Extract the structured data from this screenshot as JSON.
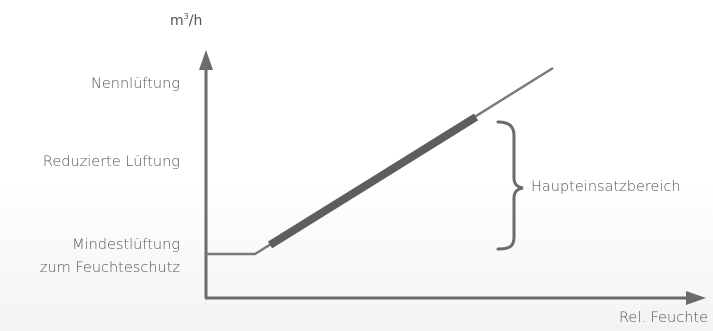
{
  "diagram": {
    "y_axis_unit": {
      "base": "m",
      "superscript": "3",
      "suffix": "/h"
    },
    "x_axis_label": "Rel. Feuchte",
    "levels": {
      "nominal": "Nennlüftung",
      "reduced": "Reduzierte Lüftung",
      "minimum_line1": "Mindestlüftung",
      "minimum_line2": "zum Feuchteschutz"
    },
    "range_label": "Haupteinsatzbereich",
    "colors": {
      "axis": "#6b6b6b",
      "line": "#7a7a7a",
      "highlight": "#5e5e5e",
      "text": "#555555"
    }
  }
}
